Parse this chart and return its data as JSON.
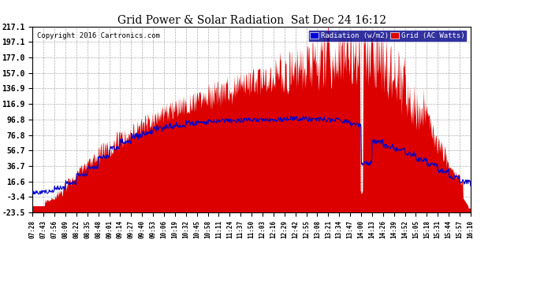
{
  "title": "Grid Power & Solar Radiation  Sat Dec 24 16:12",
  "copyright": "Copyright 2016 Cartronics.com",
  "yticks": [
    217.1,
    197.1,
    177.0,
    157.0,
    136.9,
    116.9,
    96.8,
    76.8,
    56.7,
    36.7,
    16.6,
    -3.4,
    -23.5
  ],
  "ymin": -23.5,
  "ymax": 217.1,
  "legend_labels": [
    "Radiation (w/m2)",
    "Grid (AC Watts)"
  ],
  "legend_colors": [
    "#0000dd",
    "#dd0000"
  ],
  "background_color": "#ffffff",
  "plot_bg_color": "#ffffff",
  "grid_color": "#999999",
  "xtick_labels": [
    "07:28",
    "07:43",
    "07:56",
    "08:09",
    "08:22",
    "08:35",
    "08:48",
    "09:01",
    "09:14",
    "09:27",
    "09:40",
    "09:53",
    "10:06",
    "10:19",
    "10:32",
    "10:45",
    "10:58",
    "11:11",
    "11:24",
    "11:37",
    "11:50",
    "12:03",
    "12:16",
    "12:29",
    "12:42",
    "12:55",
    "13:08",
    "13:21",
    "13:34",
    "13:47",
    "14:00",
    "14:13",
    "14:26",
    "14:39",
    "14:52",
    "15:05",
    "15:18",
    "15:31",
    "15:44",
    "15:57",
    "16:10"
  ],
  "radiation_color": "#0000cc",
  "grid_power_color": "#dd0000"
}
